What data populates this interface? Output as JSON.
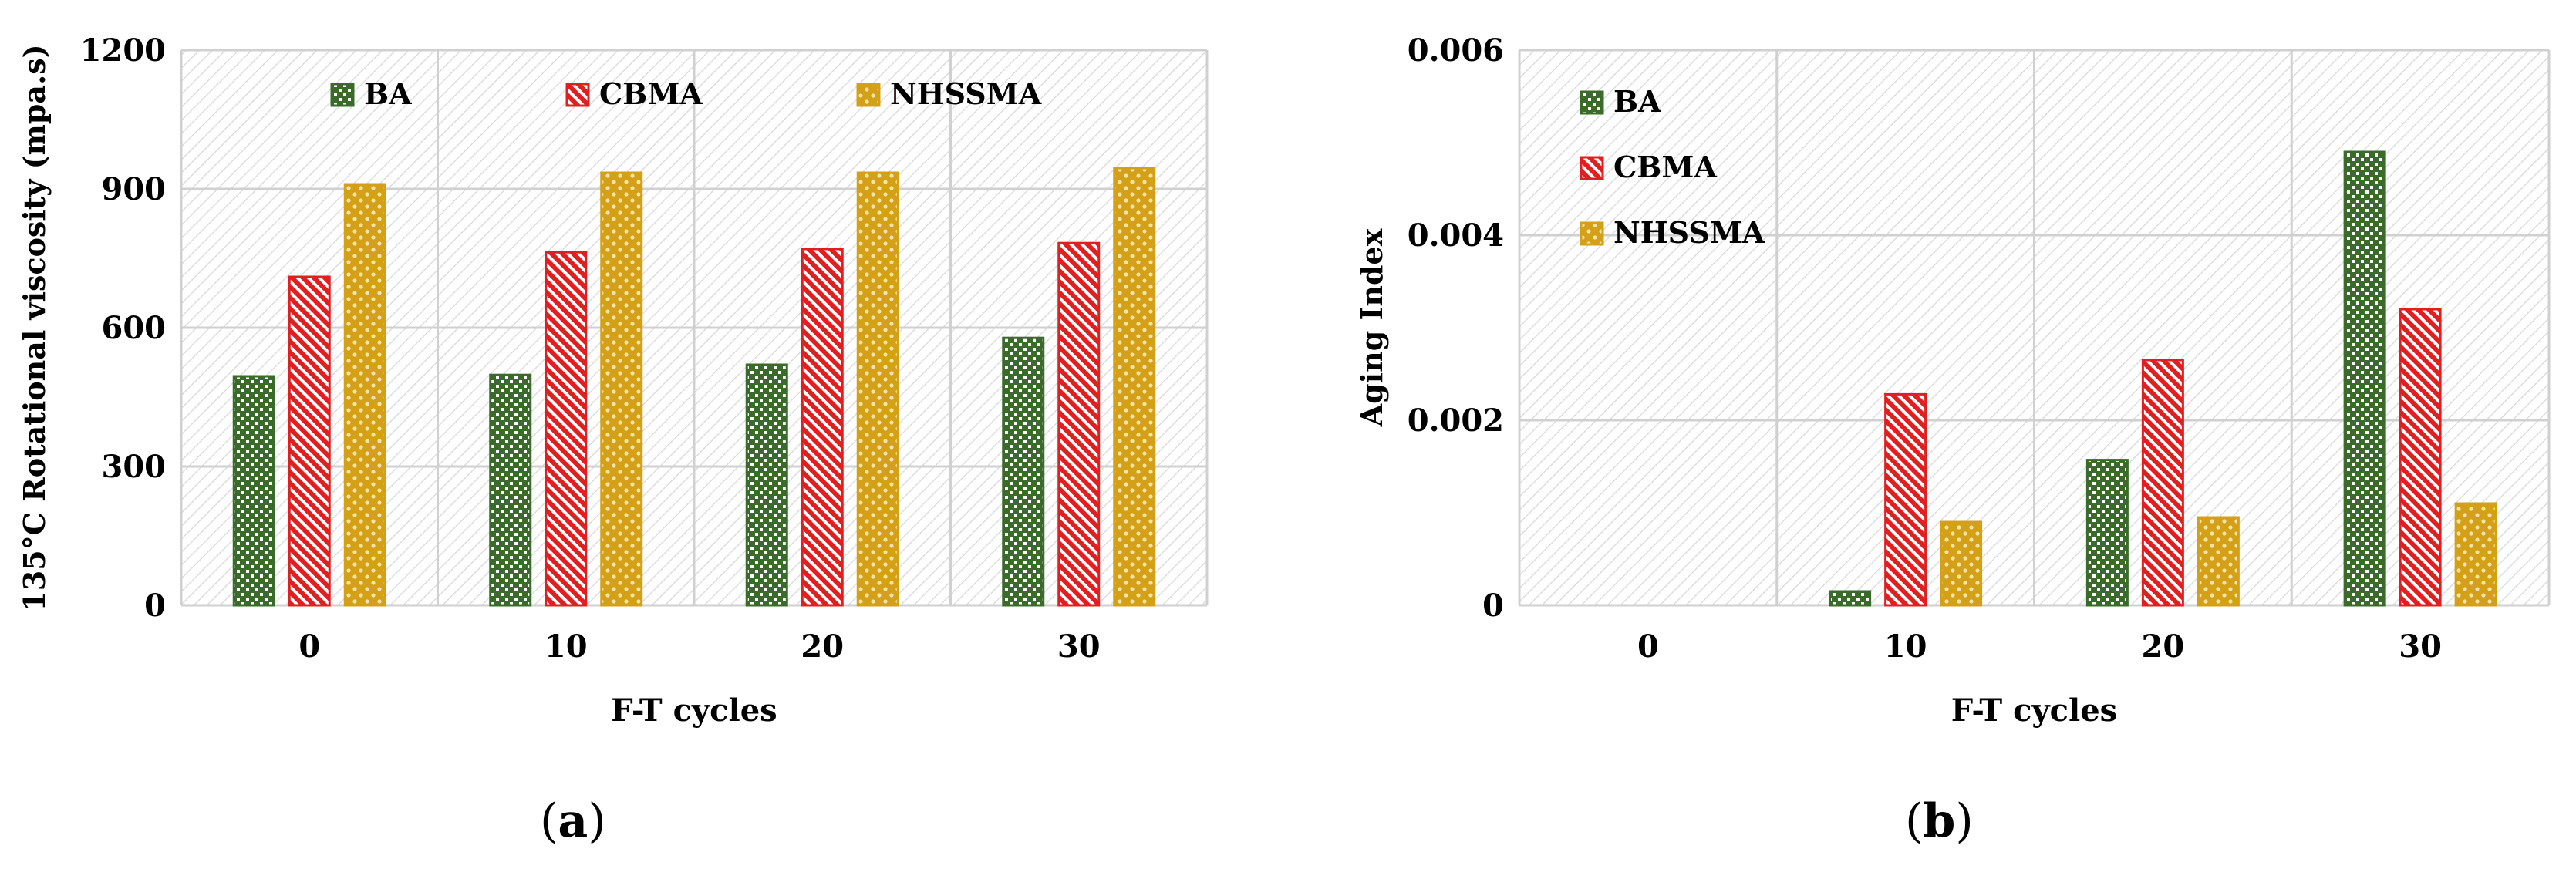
{
  "colors": {
    "BA": "#3b6b2b",
    "CBMA": "#e02020",
    "NHSSMA": "#d4a017",
    "grid": "#d0d0d0",
    "plot_bg_stripe": "#d9d9d9"
  },
  "chart_data": [
    {
      "type": "bar",
      "panel_label": "a",
      "title": "",
      "categories": [
        "0",
        "10",
        "20",
        "30"
      ],
      "series": [
        {
          "name": "BA",
          "values": [
            495,
            498,
            520,
            578
          ]
        },
        {
          "name": "CBMA",
          "values": [
            710,
            763,
            770,
            783
          ]
        },
        {
          "name": "NHSSMA",
          "values": [
            910,
            935,
            935,
            945
          ]
        }
      ],
      "xlabel": "F-T cycles",
      "ylabel": "135°C Rotational viscosity (mpa.s)",
      "ylim": [
        0,
        1200
      ],
      "yticks": [
        0,
        300,
        600,
        900,
        1200
      ],
      "ytick_labels": [
        "0",
        "300",
        "600",
        "900",
        "1200"
      ],
      "grid": true,
      "legend": "top, horizontal"
    },
    {
      "type": "bar",
      "panel_label": "b",
      "title": "",
      "categories": [
        "0",
        "10",
        "20",
        "30"
      ],
      "series": [
        {
          "name": "BA",
          "values": [
            0,
            0.00015,
            0.00157,
            0.0049
          ]
        },
        {
          "name": "CBMA",
          "values": [
            0,
            0.00228,
            0.00265,
            0.0032
          ]
        },
        {
          "name": "NHSSMA",
          "values": [
            0,
            0.0009,
            0.00095,
            0.0011
          ]
        }
      ],
      "xlabel": "F-T cycles",
      "ylabel": "Aging Index",
      "ylim": [
        0,
        0.006
      ],
      "yticks": [
        0,
        0.002,
        0.004,
        0.006
      ],
      "ytick_labels": [
        "0",
        "0.002",
        "0.004",
        "0.006"
      ],
      "grid": true,
      "legend": "top-left, vertical"
    }
  ]
}
